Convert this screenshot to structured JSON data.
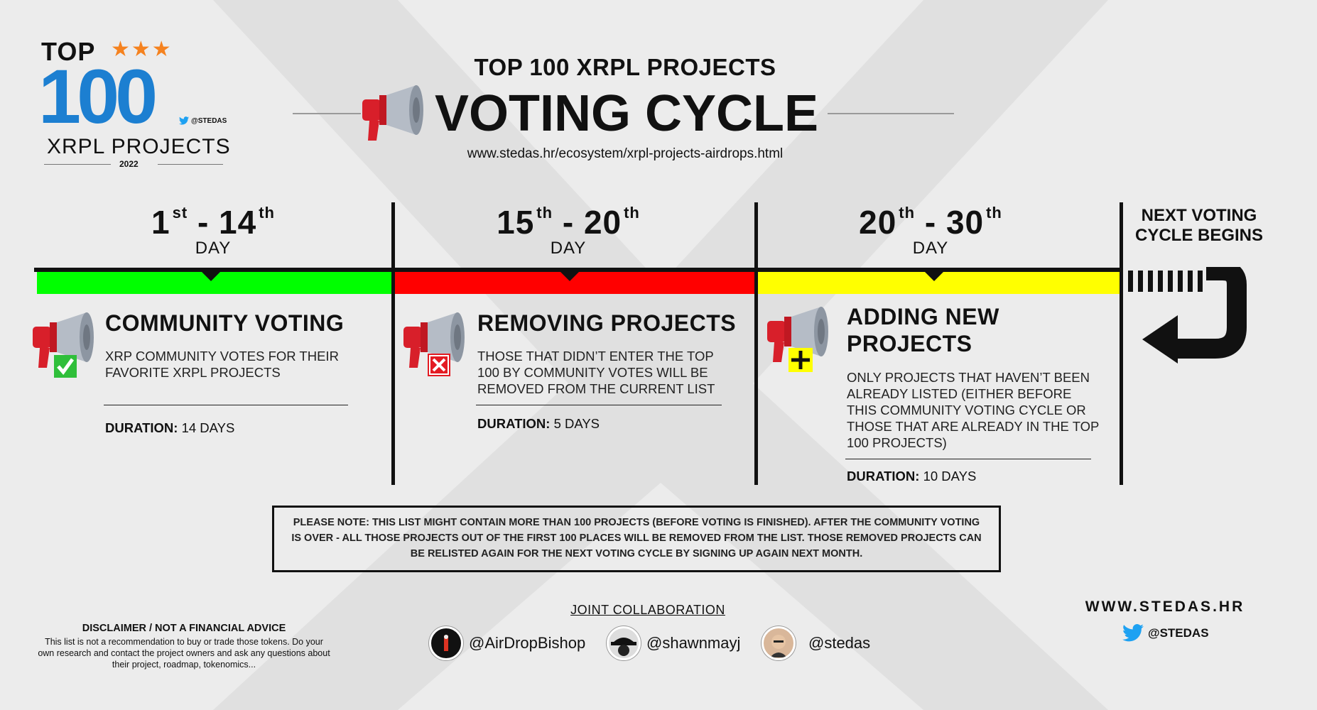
{
  "logo": {
    "top": "TOP",
    "stars": "★★★",
    "number": "100",
    "handle": "@STEDAS",
    "subtitle": "XRPL PROJECTS",
    "year": "2022"
  },
  "header": {
    "subtitle": "TOP 100 XRPL PROJECTS",
    "title": "VOTING CYCLE",
    "url": "www.stedas.hr/ecosystem/xrpl-projects-airdrops.html"
  },
  "timeline": {
    "phases": [
      {
        "day_from": "1",
        "from_sfx": "st",
        "dash": "-",
        "day_to": "14",
        "to_sfx": "th",
        "day_label": "DAY",
        "color": "#00ff00",
        "title": "COMMUNITY VOTING",
        "description": "XRP COMMUNITY VOTES FOR THEIR FAVORITE XRPL PROJECTS",
        "duration_label": "DURATION:",
        "duration_value": "14 DAYS",
        "icon": "megaphone-check-icon"
      },
      {
        "day_from": "15",
        "from_sfx": "th",
        "dash": "-",
        "day_to": "20",
        "to_sfx": "th",
        "day_label": "DAY",
        "color": "#ff0000",
        "title": "REMOVING PROJECTS",
        "description": "THOSE THAT DIDN’T ENTER THE TOP 100 BY COMMUNITY VOTES WILL BE REMOVED FROM THE CURRENT LIST",
        "duration_label": "DURATION:",
        "duration_value": "5 DAYS",
        "icon": "megaphone-cross-icon"
      },
      {
        "day_from": "20",
        "from_sfx": "th",
        "dash": "-",
        "day_to": "30",
        "to_sfx": "th",
        "day_label": "DAY",
        "color": "#ffff00",
        "title": "ADDING NEW PROJECTS",
        "description": "ONLY PROJECTS THAT HAVEN’T BEEN ALREADY LISTED (EITHER BEFORE THIS COMMUNITY VOTING CYCLE OR THOSE THAT ARE ALREADY IN THE TOP 100 PROJECTS)",
        "duration_label": "DURATION:",
        "duration_value": "10 DAYS",
        "icon": "megaphone-plus-icon"
      }
    ],
    "next_cycle": "NEXT VOTING CYCLE BEGINS"
  },
  "note": "PLEASE NOTE: THIS LIST MIGHT CONTAIN MORE THAN 100 PROJECTS (BEFORE VOTING IS FINISHED). AFTER THE COMMUNITY VOTING IS OVER - ALL THOSE PROJECTS OUT OF THE FIRST 100 PLACES WILL BE REMOVED FROM THE LIST. THOSE REMOVED PROJECTS CAN BE RELISTED AGAIN FOR THE NEXT VOTING CYCLE BY SIGNING UP AGAIN NEXT MONTH.",
  "footer": {
    "disclaimer_title": "DISCLAIMER / NOT A FINANCIAL ADVICE",
    "disclaimer_text": "This list is not a recommendation to buy or trade those tokens. Do your own research and contact the project owners and ask any questions about their project, roadmap, tokenomics...",
    "collab_title": "JOINT COLLABORATION",
    "collaborators": [
      "@AirDropBishop",
      "@shawnmayj",
      "@stedas"
    ],
    "website": "WWW.STEDAS.HR",
    "twitter": "@STEDAS"
  },
  "colors": {
    "brand_blue": "#1c7fd1",
    "star_orange": "#f5821f",
    "twitter_blue": "#1da1f2"
  }
}
